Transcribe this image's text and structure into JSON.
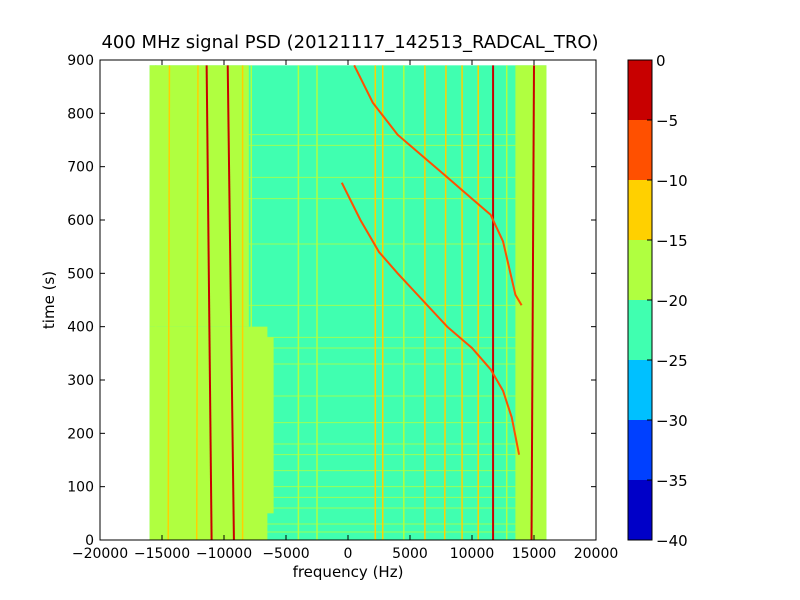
{
  "chart_data": {
    "type": "heatmap",
    "title": "400 MHz signal PSD (20121117_142513_RADCAL_TRO)",
    "xlabel": "frequency (Hz)",
    "ylabel": "time (s)",
    "xlim": [
      -20000,
      20000
    ],
    "ylim": [
      0,
      900
    ],
    "xticks": [
      -20000,
      -15000,
      -10000,
      -5000,
      0,
      5000,
      10000,
      15000,
      20000
    ],
    "yticks": [
      0,
      100,
      200,
      300,
      400,
      500,
      600,
      700,
      800,
      900
    ],
    "data_extent": {
      "x": [
        -16000,
        16000
      ],
      "y": [
        0,
        890
      ]
    },
    "background_level": -22,
    "colorbar": {
      "range": [
        -40,
        0
      ],
      "ticks": [
        0,
        -5,
        -10,
        -15,
        -20,
        -25,
        -30,
        -35,
        -40
      ],
      "bands": [
        {
          "from": -40,
          "to": -35,
          "color": "#0000c8"
        },
        {
          "from": -35,
          "to": -30,
          "color": "#0040ff"
        },
        {
          "from": -30,
          "to": -25,
          "color": "#00c0ff"
        },
        {
          "from": -25,
          "to": -20,
          "color": "#40ffb0"
        },
        {
          "from": -20,
          "to": -15,
          "color": "#b0ff40"
        },
        {
          "from": -15,
          "to": -10,
          "color": "#ffd000"
        },
        {
          "from": -10,
          "to": -5,
          "color": "#ff5000"
        },
        {
          "from": -5,
          "to": 0,
          "color": "#c80000"
        }
      ]
    },
    "regions": [
      {
        "x": [
          -16000,
          -8000
        ],
        "y": [
          400,
          890
        ],
        "level": -17
      },
      {
        "x": [
          -16000,
          -6500
        ],
        "y": [
          0,
          400
        ],
        "level": -17
      },
      {
        "x": [
          -7500,
          -6000
        ],
        "y": [
          50,
          380
        ],
        "level": -17
      },
      {
        "x": [
          13500,
          16000
        ],
        "y": [
          0,
          890
        ],
        "level": -17
      }
    ],
    "vertical_lines": [
      {
        "f": [
          -15500,
          -15500
        ],
        "t": [
          0,
          890
        ],
        "level": -17
      },
      {
        "f": [
          -14500,
          -14400
        ],
        "t": [
          0,
          890
        ],
        "level": -12
      },
      {
        "f": [
          -12200,
          -12100
        ],
        "t": [
          0,
          890
        ],
        "level": -12
      },
      {
        "f": [
          -11000,
          -11400
        ],
        "t": [
          0,
          890
        ],
        "level": -3
      },
      {
        "f": [
          -9200,
          -9700
        ],
        "t": [
          0,
          890
        ],
        "level": -3
      },
      {
        "f": [
          -8500,
          -8500
        ],
        "t": [
          0,
          890
        ],
        "level": -12
      },
      {
        "f": [
          -7800,
          -7800
        ],
        "t": [
          0,
          890
        ],
        "level": -17
      },
      {
        "f": [
          -4000,
          -4000
        ],
        "t": [
          0,
          890
        ],
        "level": -17
      },
      {
        "f": [
          -2500,
          -2500
        ],
        "t": [
          0,
          890
        ],
        "level": -17
      },
      {
        "f": [
          2200,
          2200
        ],
        "t": [
          0,
          890
        ],
        "level": -12
      },
      {
        "f": [
          2800,
          2800
        ],
        "t": [
          0,
          890
        ],
        "level": -12
      },
      {
        "f": [
          4500,
          4500
        ],
        "t": [
          0,
          890
        ],
        "level": -17
      },
      {
        "f": [
          6200,
          6200
        ],
        "t": [
          0,
          890
        ],
        "level": -12
      },
      {
        "f": [
          7800,
          7900
        ],
        "t": [
          0,
          890
        ],
        "level": -12
      },
      {
        "f": [
          9200,
          9200
        ],
        "t": [
          0,
          890
        ],
        "level": -12
      },
      {
        "f": [
          10500,
          10500
        ],
        "t": [
          0,
          890
        ],
        "level": -12
      },
      {
        "f": [
          11700,
          11700
        ],
        "t": [
          0,
          890
        ],
        "level": -3
      },
      {
        "f": [
          12800,
          12800
        ],
        "t": [
          0,
          890
        ],
        "level": -17
      },
      {
        "f": [
          14800,
          15000
        ],
        "t": [
          0,
          890
        ],
        "level": -3
      }
    ],
    "curves": [
      {
        "level": -8,
        "points": [
          [
            500,
            890
          ],
          [
            2000,
            820
          ],
          [
            4000,
            760
          ],
          [
            6000,
            720
          ],
          [
            8000,
            680
          ],
          [
            10000,
            640
          ],
          [
            11500,
            610
          ],
          [
            12500,
            560
          ],
          [
            13000,
            510
          ],
          [
            13500,
            460
          ],
          [
            14000,
            440
          ]
        ]
      },
      {
        "level": -8,
        "points": [
          [
            -500,
            670
          ],
          [
            1000,
            600
          ],
          [
            2500,
            540
          ],
          [
            4000,
            500
          ],
          [
            6000,
            450
          ],
          [
            8000,
            400
          ],
          [
            10000,
            360
          ],
          [
            11500,
            320
          ],
          [
            12500,
            280
          ],
          [
            13200,
            230
          ],
          [
            13800,
            160
          ]
        ]
      }
    ],
    "horizontal_streaks": [
      760,
      740,
      680,
      640,
      555,
      440,
      380,
      360,
      330,
      270,
      220,
      180,
      160,
      130,
      100,
      80,
      60,
      30,
      15
    ]
  }
}
